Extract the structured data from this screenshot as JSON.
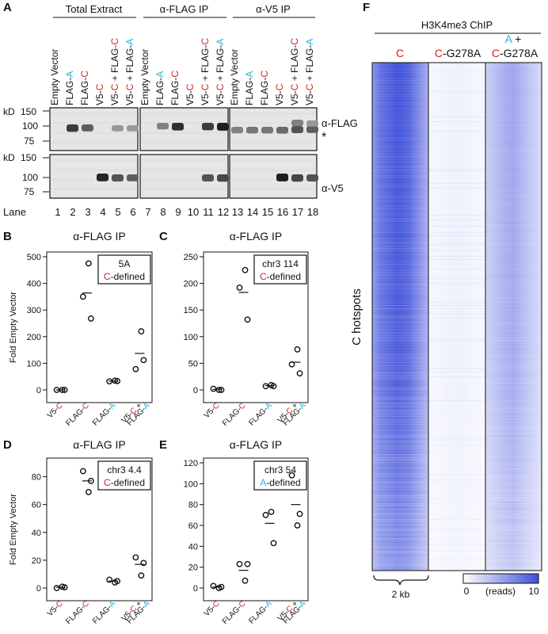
{
  "colors": {
    "red": "#d42020",
    "cyan": "#25b3d6",
    "heat_high": "#3b4fd9",
    "heat_low": "#ffffff"
  },
  "panelA": {
    "letter": "A",
    "groups": [
      "Total Extract",
      "α-FLAG IP",
      "α-V5 IP"
    ],
    "lanes_per_group": [
      {
        "parts": [
          {
            "t": "Empty Vector",
            "c": ""
          }
        ]
      },
      {
        "parts": [
          {
            "t": "FLAG-",
            "c": ""
          },
          {
            "t": "A",
            "c": "cyan"
          }
        ]
      },
      {
        "parts": [
          {
            "t": "FLAG-",
            "c": ""
          },
          {
            "t": "C",
            "c": "red"
          }
        ]
      },
      {
        "parts": [
          {
            "t": "V5-",
            "c": ""
          },
          {
            "t": "C",
            "c": "red"
          }
        ]
      },
      {
        "parts": [
          {
            "t": "V5-",
            "c": ""
          },
          {
            "t": "C",
            "c": "red"
          },
          {
            "t": " + FLAG-",
            "c": ""
          },
          {
            "t": "C",
            "c": "red"
          }
        ]
      },
      {
        "parts": [
          {
            "t": "V5-",
            "c": ""
          },
          {
            "t": "C",
            "c": "red"
          },
          {
            "t": " + FLAG-",
            "c": ""
          },
          {
            "t": "A",
            "c": "cyan"
          }
        ]
      }
    ],
    "kd_label": "kD",
    "kd_marks": [
      "150",
      "100",
      "75"
    ],
    "right_labels": [
      "α-FLAG",
      "*",
      "α-V5"
    ],
    "lane_label": "Lane",
    "lane_numbers": [
      "1",
      "2",
      "3",
      "4",
      "5",
      "6",
      "7",
      "8",
      "9",
      "10",
      "11",
      "12",
      "13",
      "14",
      "15",
      "16",
      "17",
      "18"
    ]
  },
  "scatter_panels": [
    {
      "letter": "B",
      "title": "α-FLAG IP",
      "ylabel": "Fold Empty Vector",
      "box": [
        {
          "t": "5A",
          "c": ""
        },
        {
          "t": "C",
          "c": "red",
          "t2": "-defined"
        }
      ],
      "chart_data": {
        "type": "scatter",
        "categories": [
          "V5-C",
          "FLAG-C",
          "FLAG-A",
          "V5-C + FLAG-A"
        ],
        "ylim": [
          0,
          500
        ],
        "yticks": [
          0,
          100,
          200,
          300,
          400,
          500
        ],
        "points": [
          [
            0,
            0,
            0
          ],
          [
            350,
            475,
            268
          ],
          [
            32,
            35,
            33
          ],
          [
            78,
            220,
            112
          ]
        ],
        "means": [
          0,
          364,
          33,
          137
        ]
      }
    },
    {
      "letter": "C",
      "title": "α-FLAG IP",
      "ylabel": "",
      "box": [
        {
          "t": "chr3 114",
          "c": ""
        },
        {
          "t": "C",
          "c": "red",
          "t2": "-defined"
        }
      ],
      "chart_data": {
        "type": "scatter",
        "categories": [
          "V5-C",
          "FLAG-C",
          "FLAG-A",
          "V5-C + FLAG-A"
        ],
        "ylim": [
          0,
          250
        ],
        "yticks": [
          0,
          50,
          100,
          150,
          200,
          250
        ],
        "points": [
          [
            2,
            0,
            0
          ],
          [
            192,
            225,
            132
          ],
          [
            7,
            9,
            7
          ],
          [
            48,
            76,
            31
          ]
        ],
        "means": [
          1,
          183,
          8,
          52
        ]
      }
    },
    {
      "letter": "D",
      "title": "α-FLAG IP",
      "ylabel": "Fold Empty Vector",
      "box": [
        {
          "t": "chr3 4.4",
          "c": ""
        },
        {
          "t": "C",
          "c": "red",
          "t2": "-defined"
        }
      ],
      "chart_data": {
        "type": "scatter",
        "categories": [
          "V5-C",
          "FLAG-C",
          "FLAG-A",
          "V5-C + FLAG-A"
        ],
        "ylim": [
          0,
          90
        ],
        "yticks": [
          0,
          20,
          40,
          60,
          80
        ],
        "points": [
          [
            0,
            1,
            0.5
          ],
          [
            84,
            69,
            77
          ],
          [
            6,
            4,
            5
          ],
          [
            22,
            9,
            18
          ]
        ],
        "means": [
          0.5,
          77,
          5,
          17
        ]
      }
    },
    {
      "letter": "E",
      "title": "α-FLAG IP",
      "ylabel": "",
      "box": [
        {
          "t": "chr3 54",
          "c": ""
        },
        {
          "t": "A",
          "c": "cyan",
          "t2": "-defined"
        }
      ],
      "chart_data": {
        "type": "scatter",
        "categories": [
          "V5-C",
          "FLAG-C",
          "FLAG-A",
          "V5-C + FLAG-A"
        ],
        "ylim": [
          0,
          120
        ],
        "yticks": [
          0,
          20,
          40,
          60,
          80,
          100,
          120
        ],
        "points": [
          [
            2,
            0,
            1
          ],
          [
            23,
            7,
            23
          ],
          [
            70,
            73,
            43
          ],
          [
            108,
            60,
            71
          ]
        ],
        "means": [
          1,
          17,
          62,
          80
        ]
      }
    }
  ],
  "panelF": {
    "letter": "F",
    "title": "H3K4me3 ChIP",
    "columns": [
      [
        {
          "t": "C",
          "c": "red"
        }
      ],
      [
        {
          "t": "C",
          "c": "red"
        },
        {
          "t": "-G278A",
          "c": ""
        }
      ],
      [
        {
          "t": "A",
          "c": "cyan"
        },
        {
          "t": " +",
          "c": ""
        }
      ]
    ],
    "col3_line2": [
      {
        "t": "C",
        "c": "red"
      },
      {
        "t": "-G278A",
        "c": ""
      }
    ],
    "ylabel": "C hotspots",
    "scale_label": "2 kb",
    "colorbar": {
      "min": "0",
      "max": "10",
      "label": "(reads)"
    }
  }
}
